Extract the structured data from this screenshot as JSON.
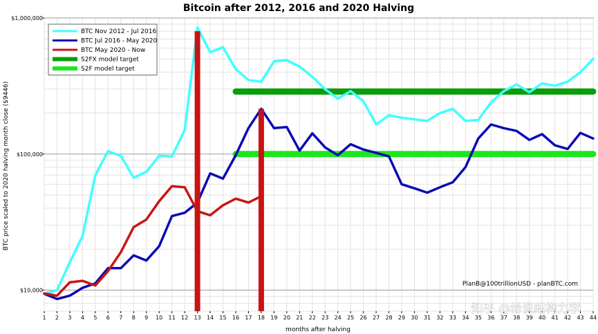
{
  "chart_data": {
    "type": "line",
    "title": "Bitcoin after 2012, 2016 and 2020 Halving",
    "xlabel": "months after halving",
    "ylabel": "BTC price scaled to 2020 halving month close ($9446)",
    "y_scale": "log",
    "ylim": [
      7000,
      1000000
    ],
    "xlim": [
      1,
      44
    ],
    "x_ticks": [
      1,
      2,
      3,
      4,
      5,
      6,
      7,
      8,
      9,
      10,
      11,
      12,
      13,
      14,
      15,
      16,
      17,
      18,
      19,
      20,
      21,
      22,
      23,
      24,
      25,
      26,
      27,
      28,
      29,
      30,
      31,
      32,
      33,
      34,
      35,
      36,
      37,
      38,
      39,
      40,
      41,
      42,
      43,
      44
    ],
    "y_ticks": [
      {
        "value": 10000,
        "label": "$10,000"
      },
      {
        "value": 100000,
        "label": "$100,000"
      },
      {
        "value": 1000000,
        "label": "$1,000,000"
      }
    ],
    "grid": true,
    "legend_position": "top-left",
    "series": [
      {
        "name": "BTC Nov 2012 - Jul 2016",
        "color": "#40ffff",
        "width": 3,
        "x": [
          1,
          2,
          3,
          4,
          5,
          6,
          7,
          8,
          9,
          10,
          11,
          12,
          13,
          14,
          15,
          16,
          17,
          18,
          19,
          20,
          21,
          22,
          23,
          24,
          25,
          26,
          27,
          28,
          29,
          30,
          31,
          32,
          33,
          34,
          35,
          36,
          37,
          38,
          39,
          40,
          41,
          42,
          43,
          44
        ],
        "y": [
          9400,
          10000,
          16000,
          25000,
          70000,
          105000,
          97000,
          67000,
          74000,
          97000,
          96000,
          150000,
          850000,
          560000,
          610000,
          420000,
          350000,
          340000,
          480000,
          490000,
          440000,
          370000,
          300000,
          255000,
          290000,
          245000,
          165000,
          193000,
          185000,
          180000,
          175000,
          200000,
          215000,
          175000,
          178000,
          240000,
          290000,
          325000,
          285000,
          330000,
          318000,
          340000,
          400000,
          500000
        ]
      },
      {
        "name": "BTC Jul 2016 - May 2020",
        "color": "#0a0ab4",
        "width": 3,
        "x": [
          1,
          2,
          3,
          4,
          5,
          6,
          7,
          8,
          9,
          10,
          11,
          12,
          13,
          14,
          15,
          16,
          17,
          18,
          19,
          20,
          21,
          22,
          23,
          24,
          25,
          26,
          27,
          28,
          29,
          30,
          31,
          32,
          33,
          34,
          35,
          36,
          37,
          38,
          39,
          40,
          41,
          42,
          43,
          44
        ],
        "y": [
          9400,
          8600,
          9100,
          10400,
          11200,
          14500,
          14500,
          18000,
          16500,
          21000,
          35000,
          37000,
          44000,
          72000,
          66000,
          98000,
          155000,
          215000,
          155000,
          158000,
          106000,
          142000,
          112000,
          98000,
          118000,
          108000,
          102000,
          96000,
          60000,
          56000,
          52000,
          57000,
          62000,
          80000,
          130000,
          165000,
          155000,
          148000,
          127000,
          140000,
          116000,
          109000,
          143000,
          130000
        ]
      },
      {
        "name": "BTC May 2020 - Now",
        "color": "#c81414",
        "width": 3,
        "x": [
          1,
          2,
          3,
          4,
          5,
          6,
          7,
          8,
          9,
          10,
          11,
          12,
          13,
          14,
          15,
          16,
          17,
          18
        ],
        "y": [
          9446,
          9100,
          11400,
          11700,
          10800,
          13800,
          19000,
          29000,
          33000,
          45000,
          58000,
          57000,
          38000,
          35500,
          42000,
          47000,
          44000,
          49000
        ]
      }
    ],
    "targets": [
      {
        "name": "S2FX model target",
        "color": "#0a9e0a",
        "value": 288000,
        "x_start": 16,
        "x_end": 44
      },
      {
        "name": "S2F model target",
        "color": "#1ee61e",
        "value": 100000,
        "x_start": 16,
        "x_end": 44
      }
    ],
    "markers": [
      {
        "x": 13,
        "y_top": 800000,
        "color": "#c81414"
      },
      {
        "x": 18,
        "y_top": 215000,
        "color": "#c81414"
      }
    ],
    "credit": "PlanB@100trillionUSD  -  planBTC.com"
  },
  "watermark": "知乎 @希说结构力学"
}
